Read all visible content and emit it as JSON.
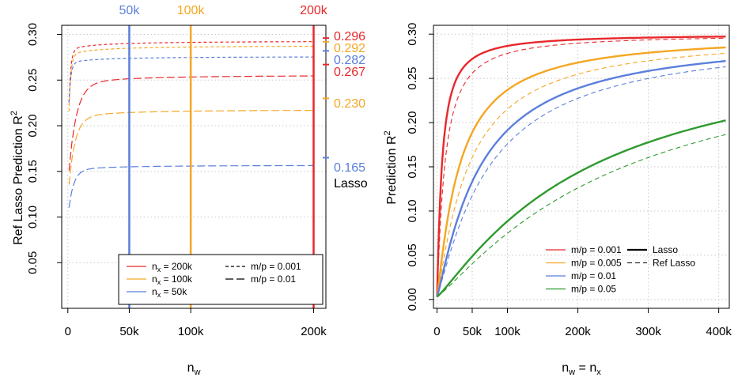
{
  "chart_data": [
    {
      "type": "line",
      "title": "",
      "xlabel_main": "n",
      "xlabel_sub": "w",
      "ylabel_main": "Ref Lasso Prediction R",
      "ylabel_sup": "2",
      "xlim": [
        -5000,
        210000
      ],
      "ylim": [
        0.0,
        0.31
      ],
      "x_ticks": [
        0,
        50000,
        100000,
        200000
      ],
      "x_tick_labels": [
        "0",
        "50k",
        "100k",
        "200k"
      ],
      "y_ticks": [
        0.05,
        0.1,
        0.15,
        0.2,
        0.25,
        0.3
      ],
      "y_tick_labels": [
        "0.05",
        "0.10",
        "0.15",
        "0.20",
        "0.25",
        "0.30"
      ],
      "grid": true,
      "vlines": [
        {
          "x": 50000,
          "label": "50k",
          "color": "#5b7fdb"
        },
        {
          "x": 100000,
          "label": "100k",
          "color": "#f5a623"
        },
        {
          "x": 200000,
          "label": "200k",
          "color": "#e8282b"
        }
      ],
      "right_labels": [
        {
          "value": 0.296,
          "label": "0.296",
          "color": "#e8282b"
        },
        {
          "value": 0.292,
          "label": "0.292",
          "color": "#f5a623"
        },
        {
          "value": 0.282,
          "label": "0.282",
          "color": "#5b7fdb"
        },
        {
          "value": 0.267,
          "label": "0.267",
          "color": "#e8282b"
        },
        {
          "value": 0.23,
          "label": "0.230",
          "color": "#f5a623"
        },
        {
          "value": 0.165,
          "label": "0.165",
          "color": "#5b7fdb"
        }
      ],
      "right_note": "Lasso",
      "series": [
        {
          "nx": "200k",
          "mp": "0.001",
          "color": "#e8282b",
          "dash": "short",
          "start": 0.225,
          "end": 0.293,
          "k": 1500
        },
        {
          "nx": "100k",
          "mp": "0.001",
          "color": "#f5a623",
          "dash": "short",
          "start": 0.215,
          "end": 0.288,
          "k": 1500
        },
        {
          "nx": "50k",
          "mp": "0.001",
          "color": "#5b7fdb",
          "dash": "short",
          "start": 0.225,
          "end": 0.276,
          "k": 1500
        },
        {
          "nx": "200k",
          "mp": "0.01",
          "color": "#e8282b",
          "dash": "long",
          "start": 0.15,
          "end": 0.256,
          "k": 6000
        },
        {
          "nx": "100k",
          "mp": "0.01",
          "color": "#f5a623",
          "dash": "long",
          "start": 0.135,
          "end": 0.218,
          "k": 5000
        },
        {
          "nx": "50k",
          "mp": "0.01",
          "color": "#5b7fdb",
          "dash": "long",
          "start": 0.11,
          "end": 0.157,
          "k": 4000
        }
      ],
      "legend": {
        "position": "bottom-right",
        "nx_entries": [
          {
            "sub": "x",
            "value": "= 200k",
            "color": "#e8282b"
          },
          {
            "sub": "x",
            "value": "= 100k",
            "color": "#f5a623"
          },
          {
            "sub": "x",
            "value": "= 50k",
            "color": "#5b7fdb"
          }
        ],
        "nx_prefix": "n",
        "mp_entries": [
          {
            "label": "m/p = 0.001",
            "dash": "short"
          },
          {
            "label": "m/p = 0.01",
            "dash": "long"
          }
        ]
      }
    },
    {
      "type": "line",
      "title": "",
      "xlabel_main": "n",
      "xlabel_sub1": "w",
      "xlabel_mid": " = n",
      "xlabel_sub2": "x",
      "ylabel_main": "Prediction R",
      "ylabel_sup": "2",
      "xlim": [
        -5000,
        415000
      ],
      "ylim": [
        -0.01,
        0.31
      ],
      "x_ticks": [
        0,
        50000,
        100000,
        200000,
        300000,
        400000
      ],
      "x_tick_labels": [
        "0",
        "50k",
        "100k",
        "200k",
        "300k",
        "400k"
      ],
      "y_ticks": [
        0.0,
        0.05,
        0.1,
        0.15,
        0.2,
        0.25,
        0.3
      ],
      "y_tick_labels": [
        "0.00",
        "0.05",
        "0.10",
        "0.15",
        "0.20",
        "0.25",
        "0.30"
      ],
      "grid": true,
      "series": [
        {
          "mp": "0.001",
          "method": "Lasso",
          "color": "#e8282b",
          "dash": "solid",
          "max": 0.3,
          "k": 7000
        },
        {
          "mp": "0.001",
          "method": "Ref Lasso",
          "color": "#e8282b",
          "dash": "dash",
          "max": 0.3,
          "k": 11000
        },
        {
          "mp": "0.005",
          "method": "Lasso",
          "color": "#f5a623",
          "dash": "solid",
          "max": 0.3,
          "k": 32000
        },
        {
          "mp": "0.005",
          "method": "Ref Lasso",
          "color": "#f5a623",
          "dash": "dash",
          "max": 0.3,
          "k": 45000
        },
        {
          "mp": "0.01",
          "method": "Lasso",
          "color": "#5b7fdb",
          "dash": "solid",
          "max": 0.3,
          "k": 62000
        },
        {
          "mp": "0.01",
          "method": "Ref Lasso",
          "color": "#5b7fdb",
          "dash": "dash",
          "max": 0.3,
          "k": 75000
        },
        {
          "mp": "0.05",
          "method": "Lasso",
          "color": "#2e9a2e",
          "dash": "solid",
          "max": 0.3,
          "k": 220000
        },
        {
          "mp": "0.05",
          "method": "Ref Lasso",
          "color": "#2e9a2e",
          "dash": "dash",
          "max": 0.3,
          "k": 270000
        }
      ],
      "legend": {
        "position": "bottom-right",
        "mp_entries": [
          {
            "label": "m/p = 0.001",
            "color": "#e8282b"
          },
          {
            "label": "m/p = 0.005",
            "color": "#f5a623"
          },
          {
            "label": "m/p = 0.01",
            "color": "#5b7fdb"
          },
          {
            "label": "m/p = 0.05",
            "color": "#2e9a2e"
          }
        ],
        "method_entries": [
          {
            "label": "Lasso",
            "dash": "solid"
          },
          {
            "label": "Ref Lasso",
            "dash": "dash"
          }
        ]
      }
    }
  ]
}
